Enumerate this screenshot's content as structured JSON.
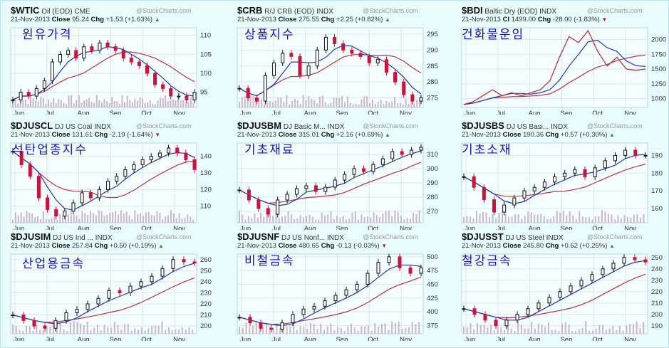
{
  "charts": [
    {
      "symbol": "$WTIC",
      "name": "Oil (EOD)",
      "exchange": "CME",
      "watermark": "@StockCharts.com",
      "date": "21-Nov-2013",
      "close_label": "Close",
      "close": "95.24",
      "chg_label": "Chg",
      "chg": "+1.53 (+1.63%)",
      "direction": "up",
      "overlay_label": "원유가격",
      "style": "candle",
      "chart_data": {
        "type": "candlestick",
        "x_ticks": [
          "Jun",
          "Jul",
          "Aug",
          "Sep",
          "Oct",
          "Nov"
        ],
        "y_ticks": [
          95,
          100,
          105,
          110
        ],
        "ylim": [
          91,
          112
        ],
        "values": [
          93,
          95,
          94,
          96,
          98,
          103,
          105,
          106,
          104,
          107,
          106,
          108,
          107,
          106,
          104,
          103,
          102,
          100,
          97,
          96,
          94,
          94,
          93,
          95
        ]
      }
    },
    {
      "symbol": "$CRB",
      "name": "R/J CRB (EOD)",
      "exchange": "INDX",
      "watermark": "@StockCharts.com",
      "date": "21-Nov-2013",
      "close_label": "Close",
      "close": "275.55",
      "chg_label": "Chg",
      "chg": "+2.25 (+0.82%)",
      "direction": "up",
      "overlay_label": "상품지수",
      "style": "candle",
      "chart_data": {
        "type": "candlestick",
        "x_ticks": [
          "Jun",
          "Jul",
          "Aug",
          "Sep",
          "Oct",
          "Nov"
        ],
        "y_ticks": [
          275,
          280,
          285,
          290,
          295
        ],
        "ylim": [
          272,
          297
        ],
        "values": [
          278,
          275,
          274,
          282,
          286,
          289,
          288,
          282,
          285,
          290,
          294,
          292,
          290,
          289,
          288,
          286,
          287,
          283,
          280,
          276,
          274,
          275
        ]
      }
    },
    {
      "symbol": "$BDI",
      "name": "Baltic Dry (EOD)",
      "exchange": "INDX",
      "watermark": "@StockCharts.com",
      "date": "21-Nov-2013",
      "close_label": "Cl",
      "close": "1499.00",
      "chg_label": "Chg",
      "chg": "-28.00 (-1.83%)",
      "direction": "down",
      "overlay_label": "건화물운임",
      "style": "line",
      "chart_data": {
        "type": "line",
        "x_ticks": [
          "Jun",
          "Jul",
          "Aug",
          "Sep",
          "Oct",
          "Nov"
        ],
        "y_ticks": [
          1000,
          1250,
          1500,
          1750,
          2000
        ],
        "ylim": [
          850,
          2200
        ],
        "values": [
          900,
          950,
          1050,
          1150,
          1050,
          1100,
          1050,
          1100,
          1150,
          1300,
          1700,
          2050,
          1950,
          2150,
          1800,
          1550,
          1700,
          1500,
          1480,
          1500
        ]
      }
    },
    {
      "symbol": "$DJUSCL",
      "name": "DJ US Coal",
      "exchange": "INDX",
      "watermark": "@StockCharts.com",
      "date": "21-Nov-2013",
      "close_label": "Close",
      "close": "131.61",
      "chg_label": "Chg",
      "chg": "-2.19 (-1.64%)",
      "direction": "down",
      "overlay_label": "석탄업종지수",
      "style": "candle",
      "chart_data": {
        "type": "candlestick",
        "x_ticks": [
          "Jun",
          "Jul",
          "Aug",
          "Sep",
          "Oct",
          "Nov"
        ],
        "y_ticks": [
          110,
          120,
          130,
          140
        ],
        "ylim": [
          100,
          148
        ],
        "values": [
          143,
          135,
          128,
          115,
          108,
          104,
          107,
          112,
          118,
          115,
          120,
          125,
          128,
          132,
          135,
          138,
          140,
          142,
          145,
          142,
          138,
          132
        ]
      }
    },
    {
      "symbol": "$DJUSBM",
      "name": "DJ Basic M...",
      "exchange": "INDX",
      "watermark": "@StockCharts.com",
      "date": "21-Nov-2013",
      "close_label": "Close",
      "close": "315.01",
      "chg_label": "Chg",
      "chg": "+2.16 (+0.69%)",
      "direction": "up",
      "overlay_label": "기초재료",
      "style": "candle",
      "chart_data": {
        "type": "candlestick",
        "x_ticks": [
          "Jun",
          "Jul",
          "Aug",
          "Sep",
          "Oct",
          "Nov"
        ],
        "y_ticks": [
          270,
          280,
          290,
          300,
          310
        ],
        "ylim": [
          262,
          318
        ],
        "values": [
          285,
          278,
          272,
          268,
          278,
          282,
          286,
          288,
          284,
          287,
          292,
          296,
          300,
          298,
          303,
          307,
          312,
          310,
          313,
          315
        ]
      }
    },
    {
      "symbol": "$DJUSBS",
      "name": "DJ US Basi...",
      "exchange": "INDX",
      "watermark": "@StockCharts.com",
      "date": "21-Nov-2013",
      "close_label": "Close",
      "close": "190.36",
      "chg_label": "Chg",
      "chg": "+0.57 (+0.30%)",
      "direction": "up",
      "overlay_label": "기초소재",
      "style": "candle",
      "chart_data": {
        "type": "candlestick",
        "x_ticks": [
          "Jun",
          "Jul",
          "Aug",
          "Sep",
          "Oct",
          "Nov"
        ],
        "y_ticks": [
          160,
          170,
          180,
          190
        ],
        "ylim": [
          152,
          197
        ],
        "values": [
          178,
          172,
          165,
          158,
          162,
          166,
          170,
          172,
          175,
          178,
          180,
          182,
          178,
          183,
          187,
          190,
          193,
          190,
          190
        ]
      }
    },
    {
      "symbol": "$DJUSIM",
      "name": "DJ US Ind ...",
      "exchange": "INDX",
      "watermark": "@StockCharts.com",
      "date": "21-Nov-2013",
      "close_label": "Close",
      "close": "257.84",
      "chg_label": "Chg",
      "chg": "+0.50 (+0.19%)",
      "direction": "up",
      "overlay_label": "산업용금속",
      "style": "candle",
      "chart_data": {
        "type": "candlestick",
        "x_ticks": [
          "Jun",
          "Jul",
          "Aug",
          "Sep",
          "Oct",
          "Nov"
        ],
        "y_ticks": [
          200,
          210,
          220,
          230,
          240,
          250,
          260
        ],
        "ylim": [
          193,
          265
        ],
        "values": [
          210,
          205,
          200,
          198,
          205,
          212,
          215,
          220,
          225,
          232,
          230,
          236,
          240,
          245,
          252,
          260,
          258,
          257
        ]
      }
    },
    {
      "symbol": "$DJUSNF",
      "name": "DJ US Nonf...",
      "exchange": "INDX",
      "watermark": "@StockCharts.com",
      "date": "21-Nov-2013",
      "close_label": "Close",
      "close": "480.65",
      "chg_label": "Chg",
      "chg": "-0.13 (-0.03%)",
      "direction": "down",
      "overlay_label": "비철금속",
      "style": "candle",
      "chart_data": {
        "type": "candlestick",
        "x_ticks": [
          "Jun",
          "Jul",
          "Aug",
          "Sep",
          "Oct",
          "Nov"
        ],
        "y_ticks": [
          375,
          400,
          425,
          450,
          475,
          500
        ],
        "ylim": [
          360,
          505
        ],
        "values": [
          390,
          380,
          370,
          368,
          380,
          395,
          405,
          410,
          420,
          430,
          440,
          450,
          470,
          490,
          500,
          480,
          470,
          480
        ]
      }
    },
    {
      "symbol": "$DJUSST",
      "name": "DJ US Steel",
      "exchange": "INDX",
      "watermark": "@StockCharts.com",
      "date": "21-Nov-2013",
      "close_label": "Close",
      "close": "245.80",
      "chg_label": "Chg",
      "chg": "+0.62 (+0.25%)",
      "direction": "up",
      "overlay_label": "철강금속",
      "style": "candle",
      "chart_data": {
        "type": "candlestick",
        "x_ticks": [
          "Jun",
          "Jul",
          "Aug",
          "Sep",
          "Oct",
          "Nov"
        ],
        "y_ticks": [
          190,
          200,
          210,
          220,
          230,
          240,
          250
        ],
        "ylim": [
          183,
          253
        ],
        "values": [
          205,
          200,
          195,
          190,
          195,
          200,
          205,
          210,
          215,
          220,
          225,
          230,
          235,
          240,
          245,
          250,
          248,
          246
        ]
      }
    }
  ],
  "colors": {
    "up_arrow": "#2a9a3a",
    "down_arrow": "#c0143c",
    "overlay_text": "#1010e0",
    "ma_fast": "#2233cc",
    "ma_slow": "#c03040",
    "candle_up": "#111111",
    "candle_down": "#d0103a",
    "volume": "#c8b8c8"
  }
}
